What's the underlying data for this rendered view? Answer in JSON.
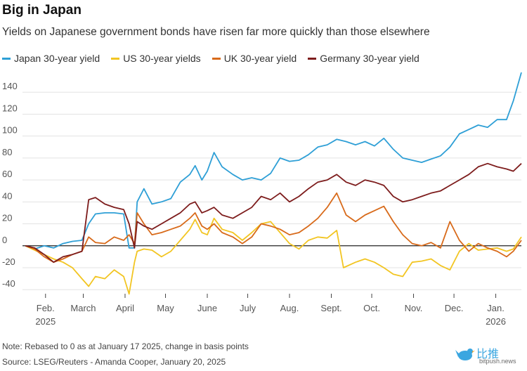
{
  "chart_data": {
    "type": "line",
    "title": "Big in Japan",
    "subtitle": "Yields on Japanese government bonds have risen far more quickly than those elsewhere",
    "xlabel": "",
    "ylabel": "",
    "ylim": [
      -45,
      160
    ],
    "yticks": [
      -40,
      -20,
      0,
      20,
      40,
      60,
      80,
      100,
      120,
      140
    ],
    "x_ticks": [
      {
        "date": "2025-02-01",
        "label": "Feb.",
        "sublabel": "2025"
      },
      {
        "date": "2025-03-01",
        "label": "March",
        "sublabel": ""
      },
      {
        "date": "2025-04-01",
        "label": "April",
        "sublabel": ""
      },
      {
        "date": "2025-05-01",
        "label": "May",
        "sublabel": ""
      },
      {
        "date": "2025-06-01",
        "label": "June",
        "sublabel": ""
      },
      {
        "date": "2025-07-01",
        "label": "July",
        "sublabel": ""
      },
      {
        "date": "2025-08-01",
        "label": "Aug.",
        "sublabel": ""
      },
      {
        "date": "2025-09-01",
        "label": "Sept.",
        "sublabel": ""
      },
      {
        "date": "2025-10-01",
        "label": "Oct.",
        "sublabel": ""
      },
      {
        "date": "2025-11-01",
        "label": "Nov.",
        "sublabel": ""
      },
      {
        "date": "2025-12-01",
        "label": "Dec.",
        "sublabel": ""
      },
      {
        "date": "2026-01-01",
        "label": "Jan.",
        "sublabel": "2026"
      }
    ],
    "xlim": [
      "2025-01-17",
      "2026-01-20"
    ],
    "legend_position": "top-left",
    "grid": true,
    "series": [
      {
        "name": "Japan 30-year yield",
        "color": "#2e9fd6",
        "points": [
          [
            "2025-01-17",
            0
          ],
          [
            "2025-01-24",
            -3
          ],
          [
            "2025-01-31",
            0
          ],
          [
            "2025-02-07",
            -2
          ],
          [
            "2025-02-14",
            2
          ],
          [
            "2025-02-21",
            4
          ],
          [
            "2025-02-28",
            5
          ],
          [
            "2025-03-05",
            20
          ],
          [
            "2025-03-10",
            29
          ],
          [
            "2025-03-17",
            30
          ],
          [
            "2025-03-24",
            30
          ],
          [
            "2025-03-31",
            29
          ],
          [
            "2025-04-04",
            -2
          ],
          [
            "2025-04-08",
            -2
          ],
          [
            "2025-04-10",
            40
          ],
          [
            "2025-04-15",
            52
          ],
          [
            "2025-04-21",
            38
          ],
          [
            "2025-04-28",
            40
          ],
          [
            "2025-05-05",
            43
          ],
          [
            "2025-05-12",
            58
          ],
          [
            "2025-05-19",
            65
          ],
          [
            "2025-05-23",
            73
          ],
          [
            "2025-05-28",
            60
          ],
          [
            "2025-06-01",
            68
          ],
          [
            "2025-06-06",
            85
          ],
          [
            "2025-06-12",
            72
          ],
          [
            "2025-06-20",
            65
          ],
          [
            "2025-06-27",
            60
          ],
          [
            "2025-07-04",
            62
          ],
          [
            "2025-07-11",
            60
          ],
          [
            "2025-07-18",
            66
          ],
          [
            "2025-07-25",
            80
          ],
          [
            "2025-08-01",
            77
          ],
          [
            "2025-08-08",
            78
          ],
          [
            "2025-08-15",
            83
          ],
          [
            "2025-08-22",
            90
          ],
          [
            "2025-08-29",
            92
          ],
          [
            "2025-09-05",
            97
          ],
          [
            "2025-09-12",
            95
          ],
          [
            "2025-09-19",
            92
          ],
          [
            "2025-09-26",
            95
          ],
          [
            "2025-10-03",
            91
          ],
          [
            "2025-10-10",
            98
          ],
          [
            "2025-10-17",
            88
          ],
          [
            "2025-10-24",
            80
          ],
          [
            "2025-10-31",
            78
          ],
          [
            "2025-11-07",
            76
          ],
          [
            "2025-11-14",
            79
          ],
          [
            "2025-11-21",
            82
          ],
          [
            "2025-11-28",
            90
          ],
          [
            "2025-12-05",
            102
          ],
          [
            "2025-12-12",
            106
          ],
          [
            "2025-12-19",
            110
          ],
          [
            "2025-12-26",
            108
          ],
          [
            "2026-01-02",
            115
          ],
          [
            "2026-01-09",
            115
          ],
          [
            "2026-01-14",
            132
          ],
          [
            "2026-01-20",
            158
          ]
        ]
      },
      {
        "name": "US 30-year yields",
        "color": "#f2c522",
        "points": [
          [
            "2025-01-17",
            0
          ],
          [
            "2025-01-24",
            -4
          ],
          [
            "2025-01-31",
            -8
          ],
          [
            "2025-02-07",
            -12
          ],
          [
            "2025-02-14",
            -15
          ],
          [
            "2025-02-21",
            -20
          ],
          [
            "2025-02-28",
            -30
          ],
          [
            "2025-03-05",
            -37
          ],
          [
            "2025-03-10",
            -28
          ],
          [
            "2025-03-17",
            -30
          ],
          [
            "2025-03-24",
            -22
          ],
          [
            "2025-03-31",
            -28
          ],
          [
            "2025-04-04",
            -44
          ],
          [
            "2025-04-08",
            -15
          ],
          [
            "2025-04-10",
            -5
          ],
          [
            "2025-04-15",
            -3
          ],
          [
            "2025-04-21",
            -4
          ],
          [
            "2025-04-28",
            -10
          ],
          [
            "2025-05-05",
            -5
          ],
          [
            "2025-05-12",
            5
          ],
          [
            "2025-05-19",
            15
          ],
          [
            "2025-05-23",
            24
          ],
          [
            "2025-05-28",
            12
          ],
          [
            "2025-06-01",
            10
          ],
          [
            "2025-06-06",
            25
          ],
          [
            "2025-06-12",
            15
          ],
          [
            "2025-06-20",
            12
          ],
          [
            "2025-06-27",
            5
          ],
          [
            "2025-07-04",
            12
          ],
          [
            "2025-07-11",
            20
          ],
          [
            "2025-07-18",
            22
          ],
          [
            "2025-07-25",
            12
          ],
          [
            "2025-08-01",
            2
          ],
          [
            "2025-08-08",
            -3
          ],
          [
            "2025-08-15",
            5
          ],
          [
            "2025-08-22",
            8
          ],
          [
            "2025-08-29",
            7
          ],
          [
            "2025-09-05",
            14
          ],
          [
            "2025-09-10",
            -20
          ],
          [
            "2025-09-19",
            -15
          ],
          [
            "2025-09-26",
            -12
          ],
          [
            "2025-10-03",
            -15
          ],
          [
            "2025-10-10",
            -20
          ],
          [
            "2025-10-17",
            -26
          ],
          [
            "2025-10-24",
            -28
          ],
          [
            "2025-10-31",
            -15
          ],
          [
            "2025-11-07",
            -14
          ],
          [
            "2025-11-14",
            -12
          ],
          [
            "2025-11-21",
            -18
          ],
          [
            "2025-11-28",
            -22
          ],
          [
            "2025-12-05",
            -5
          ],
          [
            "2025-12-12",
            2
          ],
          [
            "2025-12-19",
            -4
          ],
          [
            "2025-12-26",
            -3
          ],
          [
            "2026-01-02",
            -2
          ],
          [
            "2026-01-09",
            -5
          ],
          [
            "2026-01-14",
            -3
          ],
          [
            "2026-01-20",
            8
          ]
        ]
      },
      {
        "name": "UK 30-year yield",
        "color": "#d86a1a",
        "points": [
          [
            "2025-01-17",
            0
          ],
          [
            "2025-01-24",
            -3
          ],
          [
            "2025-01-31",
            -10
          ],
          [
            "2025-02-07",
            -15
          ],
          [
            "2025-02-14",
            -12
          ],
          [
            "2025-02-21",
            -8
          ],
          [
            "2025-02-28",
            -5
          ],
          [
            "2025-03-05",
            8
          ],
          [
            "2025-03-10",
            3
          ],
          [
            "2025-03-17",
            2
          ],
          [
            "2025-03-24",
            8
          ],
          [
            "2025-03-31",
            5
          ],
          [
            "2025-04-04",
            10
          ],
          [
            "2025-04-08",
            2
          ],
          [
            "2025-04-10",
            30
          ],
          [
            "2025-04-15",
            20
          ],
          [
            "2025-04-21",
            10
          ],
          [
            "2025-04-28",
            12
          ],
          [
            "2025-05-05",
            15
          ],
          [
            "2025-05-12",
            18
          ],
          [
            "2025-05-19",
            25
          ],
          [
            "2025-05-23",
            30
          ],
          [
            "2025-05-28",
            18
          ],
          [
            "2025-06-01",
            15
          ],
          [
            "2025-06-06",
            20
          ],
          [
            "2025-06-12",
            12
          ],
          [
            "2025-06-20",
            8
          ],
          [
            "2025-06-27",
            2
          ],
          [
            "2025-07-04",
            8
          ],
          [
            "2025-07-11",
            20
          ],
          [
            "2025-07-18",
            18
          ],
          [
            "2025-07-25",
            15
          ],
          [
            "2025-08-01",
            10
          ],
          [
            "2025-08-08",
            12
          ],
          [
            "2025-08-15",
            18
          ],
          [
            "2025-08-22",
            25
          ],
          [
            "2025-08-29",
            35
          ],
          [
            "2025-09-05",
            48
          ],
          [
            "2025-09-12",
            28
          ],
          [
            "2025-09-19",
            22
          ],
          [
            "2025-09-26",
            28
          ],
          [
            "2025-10-03",
            32
          ],
          [
            "2025-10-10",
            36
          ],
          [
            "2025-10-17",
            22
          ],
          [
            "2025-10-24",
            10
          ],
          [
            "2025-10-31",
            2
          ],
          [
            "2025-11-07",
            0
          ],
          [
            "2025-11-14",
            3
          ],
          [
            "2025-11-21",
            -2
          ],
          [
            "2025-11-28",
            22
          ],
          [
            "2025-12-05",
            5
          ],
          [
            "2025-12-12",
            -5
          ],
          [
            "2025-12-19",
            2
          ],
          [
            "2025-12-26",
            -2
          ],
          [
            "2026-01-02",
            -5
          ],
          [
            "2026-01-09",
            -10
          ],
          [
            "2026-01-14",
            -5
          ],
          [
            "2026-01-20",
            5
          ]
        ]
      },
      {
        "name": "Germany 30-year yield",
        "color": "#7d1c1c",
        "points": [
          [
            "2025-01-17",
            0
          ],
          [
            "2025-01-24",
            -2
          ],
          [
            "2025-01-31",
            -8
          ],
          [
            "2025-02-07",
            -15
          ],
          [
            "2025-02-14",
            -10
          ],
          [
            "2025-02-21",
            -8
          ],
          [
            "2025-02-28",
            -5
          ],
          [
            "2025-03-05",
            42
          ],
          [
            "2025-03-10",
            44
          ],
          [
            "2025-03-17",
            38
          ],
          [
            "2025-03-24",
            35
          ],
          [
            "2025-03-31",
            33
          ],
          [
            "2025-04-04",
            20
          ],
          [
            "2025-04-08",
            -2
          ],
          [
            "2025-04-10",
            22
          ],
          [
            "2025-04-15",
            18
          ],
          [
            "2025-04-21",
            15
          ],
          [
            "2025-04-28",
            20
          ],
          [
            "2025-05-05",
            25
          ],
          [
            "2025-05-12",
            30
          ],
          [
            "2025-05-19",
            38
          ],
          [
            "2025-05-23",
            40
          ],
          [
            "2025-05-28",
            30
          ],
          [
            "2025-06-01",
            32
          ],
          [
            "2025-06-06",
            35
          ],
          [
            "2025-06-12",
            28
          ],
          [
            "2025-06-20",
            25
          ],
          [
            "2025-06-27",
            30
          ],
          [
            "2025-07-04",
            35
          ],
          [
            "2025-07-11",
            45
          ],
          [
            "2025-07-18",
            42
          ],
          [
            "2025-07-25",
            48
          ],
          [
            "2025-08-01",
            40
          ],
          [
            "2025-08-08",
            45
          ],
          [
            "2025-08-15",
            52
          ],
          [
            "2025-08-22",
            58
          ],
          [
            "2025-08-29",
            60
          ],
          [
            "2025-09-05",
            65
          ],
          [
            "2025-09-12",
            58
          ],
          [
            "2025-09-19",
            55
          ],
          [
            "2025-09-26",
            60
          ],
          [
            "2025-10-03",
            58
          ],
          [
            "2025-10-10",
            55
          ],
          [
            "2025-10-17",
            45
          ],
          [
            "2025-10-24",
            40
          ],
          [
            "2025-10-31",
            42
          ],
          [
            "2025-11-07",
            45
          ],
          [
            "2025-11-14",
            48
          ],
          [
            "2025-11-21",
            50
          ],
          [
            "2025-11-28",
            55
          ],
          [
            "2025-12-05",
            60
          ],
          [
            "2025-12-12",
            65
          ],
          [
            "2025-12-19",
            72
          ],
          [
            "2025-12-26",
            75
          ],
          [
            "2026-01-02",
            72
          ],
          [
            "2026-01-09",
            70
          ],
          [
            "2026-01-14",
            68
          ],
          [
            "2026-01-20",
            75
          ]
        ]
      }
    ]
  },
  "footer": {
    "note": "Note: Rebased to 0 as at January 17 2025, change in basis points",
    "source": "Source: LSEG/Reuters - Amanda Cooper, January 20, 2025"
  },
  "watermark": {
    "text": "比推",
    "sub": "bitpush.news"
  }
}
